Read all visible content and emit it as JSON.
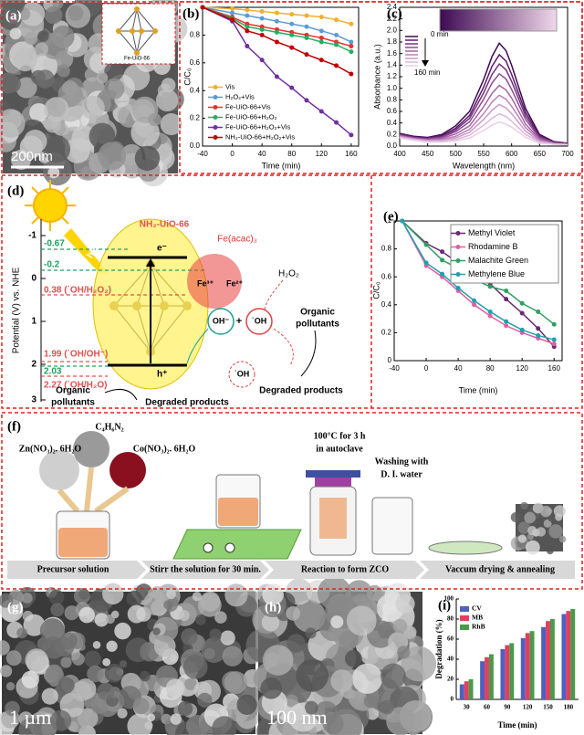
{
  "panel_labels": [
    "(a)",
    "(b)",
    "(c)",
    "(d)",
    "(e)",
    "(f)",
    "(g)",
    "(h)",
    "(i)"
  ],
  "panel_a": {
    "inset_label": "Fe-UiO-66",
    "scale_bar": "200nm"
  },
  "chart_data": [
    {
      "type": "line",
      "x": [
        -40,
        0,
        20,
        40,
        60,
        80,
        100,
        120,
        140,
        160
      ],
      "xlim": [
        -40,
        170
      ],
      "xticks": [
        -40,
        0,
        40,
        80,
        120,
        160
      ],
      "ylim": [
        0,
        1
      ],
      "yticks": [
        {
          "value": 0,
          "label": "0.0"
        },
        0.2,
        0.4,
        0.6,
        0.8
      ],
      "x_label": "Time (min)",
      "y_label": "C/C₀",
      "legend": "lower left",
      "markers": true,
      "series": [
        {
          "name": "Vis",
          "color": "#f0b030",
          "values": [
            1,
            0.99,
            0.98,
            0.97,
            0.96,
            0.95,
            0.94,
            0.93,
            0.91,
            0.88
          ]
        },
        {
          "name": "H₂O₂+Vis",
          "color": "#5b9bd5",
          "values": [
            1,
            0.96,
            0.94,
            0.92,
            0.9,
            0.88,
            0.86,
            0.83,
            0.8,
            0.75
          ]
        },
        {
          "name": "Fe-UiO-66+Vis",
          "color": "#e83030",
          "values": [
            1,
            0.93,
            0.88,
            0.86,
            0.84,
            0.82,
            0.8,
            0.78,
            0.75,
            0.72
          ]
        },
        {
          "name": "Fe-UiO-66+H₂O₂",
          "color": "#20b060",
          "values": [
            1,
            0.92,
            0.86,
            0.84,
            0.82,
            0.8,
            0.78,
            0.75,
            0.73,
            0.68
          ]
        },
        {
          "name": "Fe-UiO-66+H₂O₂+Vis",
          "color": "#7030a0",
          "values": [
            1,
            0.9,
            0.72,
            0.62,
            0.5,
            0.42,
            0.33,
            0.25,
            0.17,
            0.08
          ]
        },
        {
          "name": "NH₂-UiO-66+H₂O₂+Vis",
          "color": "#c00000",
          "values": [
            1,
            0.91,
            0.83,
            0.8,
            0.75,
            0.71,
            0.66,
            0.62,
            0.58,
            0.52
          ]
        }
      ]
    },
    {
      "type": "line",
      "x": [
        400,
        425,
        450,
        475,
        500,
        525,
        550,
        565,
        578,
        590,
        600,
        625,
        650,
        675,
        700
      ],
      "xlim": [
        400,
        700
      ],
      "xticks": [
        400,
        450,
        500,
        550,
        600,
        650,
        700
      ],
      "ylim": [
        0,
        2.4
      ],
      "yticks": [
        {
          "value": 0,
          "label": "0.0"
        },
        0.2,
        0.4,
        0.6,
        0.8,
        {
          "value": 1,
          "label": "1.0"
        },
        1.2,
        1.4,
        1.6,
        1.8,
        {
          "value": 2,
          "label": "2.0"
        },
        2.2,
        2.4
      ],
      "x_label": "Wavelength (nm)",
      "y_label": "Absorbance (a.u.)",
      "markers": false,
      "annotations": [
        "0 min",
        "160 min"
      ],
      "series": [
        {
          "color": "#3d0a52",
          "values": [
            0.22,
            0.17,
            0.15,
            0.2,
            0.35,
            0.6,
            1.15,
            1.55,
            1.78,
            1.65,
            1.4,
            0.65,
            0.2,
            0.08,
            0.05
          ]
        },
        {
          "color": "#5a1a6a",
          "values": [
            0.21,
            0.16,
            0.14,
            0.18,
            0.31,
            0.53,
            1.02,
            1.38,
            1.58,
            1.47,
            1.24,
            0.58,
            0.18,
            0.07,
            0.04
          ]
        },
        {
          "color": "#75307f",
          "values": [
            0.2,
            0.15,
            0.13,
            0.16,
            0.28,
            0.48,
            0.92,
            1.24,
            1.42,
            1.32,
            1.12,
            0.52,
            0.16,
            0.07,
            0.04
          ]
        },
        {
          "color": "#8e4a92",
          "values": [
            0.19,
            0.14,
            0.12,
            0.15,
            0.25,
            0.42,
            0.81,
            1.09,
            1.25,
            1.16,
            0.98,
            0.46,
            0.14,
            0.06,
            0.04
          ]
        },
        {
          "color": "#a565a5",
          "values": [
            0.18,
            0.13,
            0.11,
            0.13,
            0.21,
            0.35,
            0.68,
            0.91,
            1.05,
            0.97,
            0.83,
            0.38,
            0.12,
            0.05,
            0.03
          ]
        },
        {
          "color": "#ba80b8",
          "values": [
            0.17,
            0.13,
            0.1,
            0.11,
            0.17,
            0.29,
            0.56,
            0.76,
            0.88,
            0.81,
            0.69,
            0.32,
            0.1,
            0.04,
            0.03
          ]
        },
        {
          "color": "#cc9bc9",
          "values": [
            0.16,
            0.12,
            0.09,
            0.1,
            0.14,
            0.24,
            0.46,
            0.62,
            0.72,
            0.66,
            0.56,
            0.26,
            0.08,
            0.04,
            0.03
          ]
        },
        {
          "color": "#dcb6d9",
          "values": [
            0.15,
            0.11,
            0.08,
            0.08,
            0.11,
            0.19,
            0.36,
            0.48,
            0.56,
            0.51,
            0.43,
            0.2,
            0.07,
            0.03,
            0.02
          ]
        },
        {
          "color": "#e9cfe7",
          "values": [
            0.14,
            0.1,
            0.07,
            0.07,
            0.09,
            0.14,
            0.27,
            0.36,
            0.42,
            0.38,
            0.33,
            0.15,
            0.05,
            0.03,
            0.02
          ]
        }
      ]
    },
    {
      "type": "line",
      "x": [
        -30,
        0,
        20,
        40,
        60,
        80,
        100,
        120,
        140,
        160
      ],
      "xlim": [
        -40,
        170
      ],
      "xticks": [
        -40,
        0,
        40,
        80,
        120,
        160
      ],
      "ylim": [
        0,
        1
      ],
      "yticks": [
        0,
        0.2,
        0.4,
        0.6,
        0.8,
        1
      ],
      "x_label": "Time (min)",
      "y_label": "C/C₀",
      "legend": "upper right",
      "markers": true,
      "series": [
        {
          "name": "Methyl Violet",
          "color": "#6a2c70",
          "values": [
            1,
            0.84,
            0.78,
            0.7,
            0.63,
            0.55,
            0.44,
            0.34,
            0.23,
            0.1
          ]
        },
        {
          "name": "Rhodamine B",
          "color": "#e060a0",
          "values": [
            1,
            0.68,
            0.6,
            0.5,
            0.4,
            0.32,
            0.25,
            0.2,
            0.16,
            0.12
          ]
        },
        {
          "name": "Malachite Green",
          "color": "#30a060",
          "values": [
            1,
            0.83,
            0.72,
            0.66,
            0.58,
            0.53,
            0.5,
            0.41,
            0.35,
            0.26
          ]
        },
        {
          "name": "Methylene Blue",
          "color": "#20a0b0",
          "values": [
            1,
            0.7,
            0.62,
            0.52,
            0.43,
            0.35,
            0.28,
            0.22,
            0.18,
            0.15
          ]
        }
      ]
    },
    {
      "type": "bar",
      "categories": [
        "30",
        "60",
        "90",
        "120",
        "150",
        "180"
      ],
      "ylim": [
        0,
        100
      ],
      "yticks": [
        0,
        20,
        40,
        60,
        80,
        100
      ],
      "x_label": "Time (min)",
      "y_label": "Degradation (%)",
      "legend": "upper left",
      "series": [
        {
          "name": "CV",
          "color": "#5060c0",
          "values": [
            15,
            38,
            50,
            61,
            72,
            85
          ]
        },
        {
          "name": "MB",
          "color": "#e04060",
          "values": [
            18,
            42,
            54,
            66,
            78,
            88
          ]
        },
        {
          "name": "RhB",
          "color": "#4a9a4a",
          "values": [
            20,
            45,
            56,
            68,
            80,
            90
          ]
        }
      ]
    }
  ],
  "panel_d": {
    "axis_label": "Potential (V) vs. NHE",
    "ticks": [
      "-1",
      "0",
      "1",
      "2",
      "3"
    ],
    "levels": [
      "-0.67",
      "-0.2",
      "0.38 (˙OH/H₂O₂)",
      "1.99 (˙OH/OH⁻)",
      "2.03",
      "2.27 (˙OH/H₂O)"
    ],
    "material": "NH₂-UiO-66",
    "cocatalyst": "Fe(acac)₃",
    "electron": "e⁻",
    "hole": "h⁺",
    "light": "hν",
    "fe3": "Fe³⁺",
    "fe2": "Fe²⁺",
    "oxidant": "H₂O₂",
    "hydroxide": "OH⁻",
    "plus": "+",
    "radicals": [
      "˙OH",
      "˙OH"
    ],
    "pollutants": [
      "Organic",
      "pollutants"
    ],
    "pollutants_lower": [
      "Organic",
      "pollutants"
    ],
    "products": [
      "Degraded products",
      "Degraded products"
    ]
  },
  "panel_f": {
    "reagents": [
      "C₄H₆N₂",
      "Zn(NO₃)₂. 6H₂O",
      "Co(NO₃)₂. 6H₂O"
    ],
    "notes": [
      "100°C for 3 h",
      "in autoclave",
      "Washing with",
      "D. I. water"
    ],
    "steps": [
      "Precursor solution",
      "Stirr the solution for 30 min.",
      "Reaction to form ZCO",
      "Vaccum drying & annealing"
    ]
  },
  "panel_g": {
    "scale_bar": "1 µm"
  },
  "panel_h": {
    "scale_bar": "100 nm"
  }
}
